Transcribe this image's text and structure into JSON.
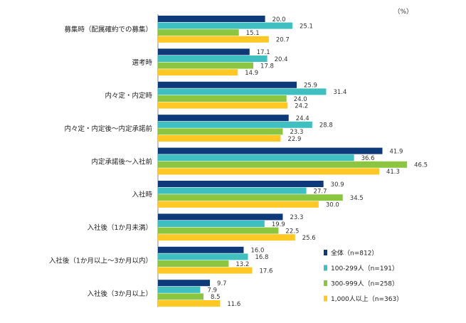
{
  "chart_data": {
    "type": "bar",
    "orientation": "horizontal",
    "unit": "（%）",
    "categories": [
      "募集時（配属確約での募集）",
      "選考時",
      "内々定・内定時",
      "内々定・内定後～内定承諾前",
      "内定承諾後～入社前",
      "入社時",
      "入社後（1か月未満）",
      "入社後（1か月以上～3か月以内）",
      "入社後（3か月以上）"
    ],
    "series": [
      {
        "name": "全体（n=812）",
        "color": "#0e3a7a",
        "values": [
          20.0,
          17.1,
          25.9,
          24.4,
          41.9,
          30.9,
          23.3,
          16.0,
          9.7
        ]
      },
      {
        "name": "100-299人（n=191）",
        "color": "#3fbfbf",
        "values": [
          25.1,
          20.4,
          31.4,
          28.8,
          36.6,
          27.7,
          19.9,
          16.8,
          7.9
        ]
      },
      {
        "name": "300-999人（n=258）",
        "color": "#8cc640",
        "values": [
          15.1,
          17.8,
          24.0,
          23.3,
          46.5,
          34.5,
          22.5,
          13.2,
          8.5
        ]
      },
      {
        "name": "1,000人以上（n=363）",
        "color": "#ffc824",
        "values": [
          20.7,
          14.9,
          24.2,
          22.9,
          41.3,
          30.0,
          25.6,
          17.6,
          11.6
        ]
      }
    ],
    "xlim": [
      0,
      60
    ],
    "legend_position": "bottom-right",
    "grid": false
  }
}
